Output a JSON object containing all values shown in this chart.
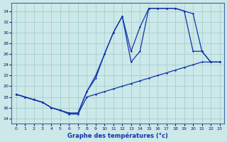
{
  "title": "Graphe des températures (°c)",
  "bg_color": "#cce8e8",
  "grid_color": "#99cccc",
  "line_color": "#1133aa",
  "xlim": [
    -0.5,
    23.5
  ],
  "ylim": [
    13.0,
    35.5
  ],
  "xticks": [
    0,
    1,
    2,
    3,
    4,
    5,
    6,
    7,
    8,
    9,
    10,
    11,
    12,
    13,
    14,
    15,
    16,
    17,
    18,
    19,
    20,
    21,
    22,
    23
  ],
  "yticks": [
    14,
    16,
    18,
    20,
    22,
    24,
    26,
    28,
    30,
    32,
    34
  ],
  "line1_x": [
    0,
    1,
    2,
    3,
    4,
    5,
    6,
    7,
    8,
    9,
    10,
    11,
    12,
    13,
    14,
    15,
    16,
    17,
    18,
    19,
    20,
    21,
    22,
    23
  ],
  "line1_y": [
    18.5,
    18.0,
    17.5,
    17.0,
    16.0,
    15.5,
    15.0,
    15.0,
    19.0,
    22.0,
    26.0,
    30.0,
    33.0,
    26.5,
    31.0,
    34.5,
    34.5,
    34.5,
    34.5,
    34.0,
    33.5,
    26.5,
    24.5,
    24.5
  ],
  "line2_x": [
    0,
    1,
    2,
    3,
    4,
    5,
    6,
    7,
    8,
    9,
    10,
    11,
    12,
    13,
    14,
    15,
    16,
    17,
    18,
    19,
    20,
    21,
    22,
    23
  ],
  "line2_y": [
    18.5,
    18.0,
    17.5,
    17.0,
    16.0,
    15.5,
    15.0,
    15.0,
    19.0,
    21.5,
    26.0,
    30.0,
    33.0,
    24.5,
    26.5,
    34.5,
    34.5,
    34.5,
    34.5,
    34.0,
    26.5,
    26.5,
    24.5,
    24.5
  ],
  "line3_x": [
    0,
    1,
    2,
    3,
    4,
    5,
    6,
    7,
    8,
    9,
    10,
    11,
    12,
    13,
    14,
    15,
    16,
    17,
    18,
    19,
    20,
    21,
    22,
    23
  ],
  "line3_y": [
    18.5,
    18.0,
    17.5,
    17.0,
    16.0,
    15.5,
    14.8,
    14.8,
    18.0,
    18.5,
    19.0,
    19.5,
    20.0,
    20.5,
    21.0,
    21.5,
    22.0,
    22.5,
    23.0,
    23.5,
    24.0,
    24.5,
    24.5,
    24.5
  ]
}
